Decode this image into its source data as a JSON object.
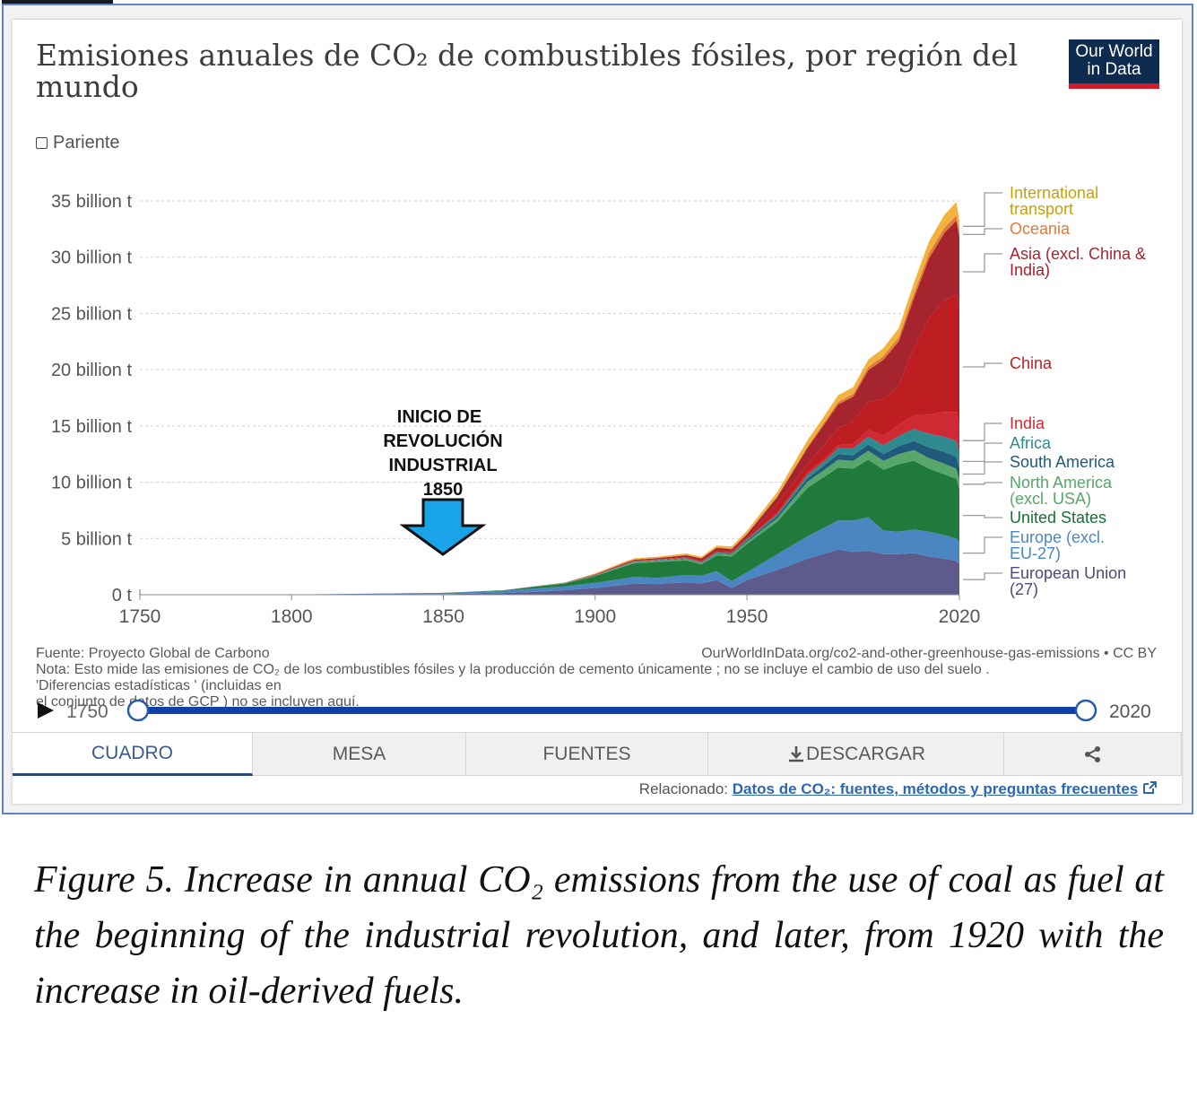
{
  "title": "Emisiones anuales de CO₂ de combustibles fósiles, por región del mundo",
  "logo": {
    "line1": "Our World",
    "line2": "in Data"
  },
  "relative_label": "Pariente",
  "annotation": {
    "line1": "INICIO DE",
    "line2": "REVOLUCIÓN",
    "line3": "INDUSTRIAL",
    "line4": "1850"
  },
  "footer": {
    "source": "Fuente: Proyecto Global de Carbono",
    "url": "OurWorldInData.org/co2-and-other-greenhouse-gas-emissions • CC BY",
    "note": "Nota: Esto mide las emisiones de CO₂ de los combustibles fósiles y la producción de cemento únicamente ; no se incluye el cambio de uso del suelo .",
    "note2": "'Diferencias estadísticas ' (incluidas en",
    "note3": "el conjunto de datos de GCP ) no se incluyen aquí."
  },
  "timeline": {
    "start": "1750",
    "end": "2020"
  },
  "tabs": [
    "CUADRO",
    "MESA",
    "FUENTES",
    "DESCARGAR"
  ],
  "related": {
    "label": "Relacionado:",
    "link": "Datos de CO₂: fuentes, métodos y preguntas frecuentes"
  },
  "caption": "Figure 5. Increase in annual CO₂ emissions from the use of coal as fuel at the beginning of the industrial revolution, and later, from 1920 with the increase in oil-derived fuels.",
  "chart_data": {
    "type": "area",
    "stacked": true,
    "xlim": [
      1750,
      2020
    ],
    "ylim": [
      0,
      36
    ],
    "x_ticks": [
      "1750",
      "1800",
      "1850",
      "1900",
      "1950",
      "2020"
    ],
    "y_ticks": [
      "0 t",
      "5 billion t",
      "10 billion t",
      "15 billion t",
      "20 billion t",
      "25 billion t",
      "30 billion t",
      "35 billion t"
    ],
    "grid": "horizontal dotted",
    "x": [
      1750,
      1800,
      1850,
      1870,
      1880,
      1890,
      1900,
      1910,
      1913,
      1920,
      1930,
      1935,
      1940,
      1945,
      1950,
      1960,
      1970,
      1975,
      1980,
      1985,
      1990,
      1995,
      2000,
      2005,
      2010,
      2015,
      2019,
      2020
    ],
    "series": [
      {
        "name": "European Union (27)",
        "color": "#5e5a8c",
        "values": [
          0,
          0.01,
          0.05,
          0.15,
          0.25,
          0.4,
          0.6,
          0.9,
          1.0,
          0.95,
          1.1,
          1.0,
          1.3,
          0.6,
          1.3,
          2.2,
          3.2,
          3.6,
          4.0,
          3.8,
          3.9,
          3.6,
          3.6,
          3.7,
          3.4,
          3.2,
          3.0,
          2.7
        ]
      },
      {
        "name": "Europe (excl. EU-27)",
        "color": "#4a86c2",
        "values": [
          0,
          0.01,
          0.1,
          0.2,
          0.3,
          0.35,
          0.45,
          0.55,
          0.6,
          0.55,
          0.65,
          0.7,
          0.8,
          0.6,
          0.7,
          1.4,
          2.0,
          2.3,
          2.6,
          2.8,
          3.0,
          2.1,
          2.0,
          2.1,
          2.2,
          2.1,
          2.0,
          2.0
        ]
      },
      {
        "name": "United States",
        "color": "#1f7a3c",
        "values": [
          0,
          0,
          0.02,
          0.05,
          0.15,
          0.25,
          0.6,
          1.1,
          1.2,
          1.4,
          1.3,
          1.0,
          1.4,
          2.2,
          2.5,
          2.9,
          4.3,
          4.5,
          4.7,
          4.6,
          5.1,
          5.4,
          6.0,
          6.1,
          5.6,
          5.4,
          5.3,
          4.7
        ]
      },
      {
        "name": "North America (excl. USA)",
        "color": "#57a66a",
        "values": [
          0,
          0,
          0,
          0.01,
          0.02,
          0.03,
          0.05,
          0.08,
          0.1,
          0.1,
          0.12,
          0.1,
          0.15,
          0.15,
          0.2,
          0.3,
          0.55,
          0.6,
          0.7,
          0.7,
          0.8,
          0.8,
          0.9,
          0.95,
          0.95,
          0.95,
          0.9,
          0.85
        ]
      },
      {
        "name": "South America",
        "color": "#21597a",
        "values": [
          0,
          0,
          0,
          0,
          0.01,
          0.01,
          0.02,
          0.03,
          0.03,
          0.03,
          0.04,
          0.04,
          0.05,
          0.06,
          0.1,
          0.2,
          0.3,
          0.4,
          0.5,
          0.5,
          0.55,
          0.6,
          0.7,
          0.8,
          0.95,
          1.05,
          1.05,
          0.95
        ]
      },
      {
        "name": "Africa",
        "color": "#2e8a8f",
        "values": [
          0,
          0,
          0,
          0,
          0.01,
          0.01,
          0.02,
          0.03,
          0.03,
          0.04,
          0.05,
          0.05,
          0.06,
          0.08,
          0.1,
          0.15,
          0.3,
          0.35,
          0.5,
          0.6,
          0.7,
          0.8,
          0.9,
          1.1,
          1.2,
          1.35,
          1.4,
          1.3
        ]
      },
      {
        "name": "India",
        "color": "#cf2a34",
        "values": [
          0,
          0,
          0,
          0,
          0.01,
          0.01,
          0.02,
          0.03,
          0.03,
          0.04,
          0.05,
          0.05,
          0.06,
          0.06,
          0.08,
          0.12,
          0.2,
          0.22,
          0.3,
          0.4,
          0.6,
          0.8,
          1.0,
          1.2,
          1.7,
          2.2,
          2.6,
          2.4
        ]
      },
      {
        "name": "China",
        "color": "#be1e22",
        "values": [
          0,
          0,
          0,
          0,
          0,
          0,
          0.01,
          0.02,
          0.02,
          0.03,
          0.05,
          0.08,
          0.1,
          0.1,
          0.08,
          0.8,
          0.8,
          1.2,
          1.5,
          2.0,
          2.5,
          3.3,
          3.5,
          6.0,
          8.6,
          9.9,
          10.5,
          10.7
        ]
      },
      {
        "name": "Asia (excl. China & India)",
        "color": "#a5242e",
        "values": [
          0,
          0,
          0,
          0,
          0,
          0.01,
          0.05,
          0.1,
          0.1,
          0.1,
          0.15,
          0.2,
          0.25,
          0.2,
          0.3,
          0.6,
          1.4,
          1.8,
          2.1,
          2.2,
          2.8,
          3.5,
          3.9,
          4.4,
          5.3,
          6.0,
          6.5,
          6.2
        ]
      },
      {
        "name": "Oceania",
        "color": "#e07a3a",
        "values": [
          0,
          0,
          0,
          0,
          0.01,
          0.01,
          0.02,
          0.03,
          0.03,
          0.03,
          0.04,
          0.04,
          0.05,
          0.05,
          0.06,
          0.1,
          0.15,
          0.18,
          0.22,
          0.25,
          0.3,
          0.33,
          0.38,
          0.42,
          0.45,
          0.45,
          0.45,
          0.44
        ]
      },
      {
        "name": "International transport",
        "color": "#f2b33e",
        "values": [
          0,
          0,
          0,
          0,
          0,
          0.01,
          0.05,
          0.1,
          0.1,
          0.1,
          0.12,
          0.12,
          0.15,
          0.2,
          0.25,
          0.35,
          0.55,
          0.55,
          0.6,
          0.6,
          0.65,
          0.7,
          0.8,
          0.95,
          1.05,
          1.15,
          1.2,
          1.0
        ]
      }
    ],
    "legend": "right, line-labels"
  }
}
